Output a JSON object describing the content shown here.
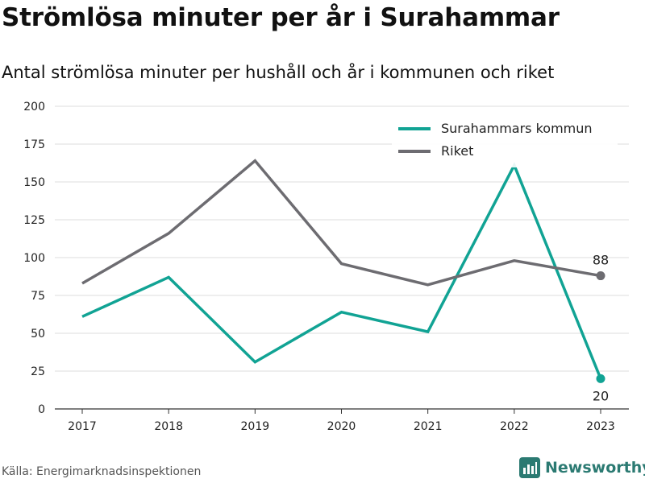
{
  "header": {
    "title": "Strömlösa minuter per år i Surahammar",
    "subtitle": "Antal strömlösa minuter per hushåll och år i kommunen och riket"
  },
  "footer": {
    "source": "Källa: Energimarknadsinspektionen",
    "brand": "Newsworthy",
    "brand_icon": "bar-chart-logo-icon"
  },
  "colors": {
    "kommun": "#11a394",
    "riket": "#6d6c71",
    "grid": "#dddddd",
    "axis": "#333333",
    "brand": "#2b7a72"
  },
  "chart_data": {
    "type": "line",
    "categories": [
      "2017",
      "2018",
      "2019",
      "2020",
      "2021",
      "2022",
      "2023"
    ],
    "series": [
      {
        "name": "Surahammars kommun",
        "values": [
          61,
          87,
          31,
          64,
          51,
          161,
          20
        ]
      },
      {
        "name": "Riket",
        "values": [
          83,
          116,
          164,
          96,
          82,
          98,
          88
        ]
      }
    ],
    "end_labels": [
      "20",
      "88"
    ],
    "yticks": [
      "0",
      "25",
      "50",
      "75",
      "100",
      "125",
      "150",
      "175",
      "200"
    ],
    "ylim": [
      0,
      200
    ],
    "grid": true,
    "legend_position": "top-right"
  }
}
